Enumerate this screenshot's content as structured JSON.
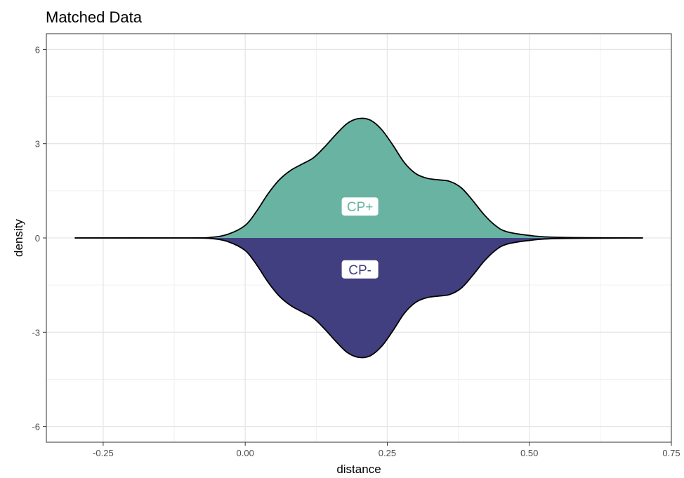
{
  "chart_data": {
    "type": "area",
    "title": "Matched Data",
    "xlabel": "distance",
    "ylabel": "density",
    "xlim": [
      -0.35,
      0.75
    ],
    "ylim": [
      -6.5,
      6.5
    ],
    "x_ticks": [
      -0.25,
      0.0,
      0.25,
      0.5,
      0.75
    ],
    "x_tick_labels": [
      "-0.25",
      "0.00",
      "0.25",
      "0.50",
      "0.75"
    ],
    "y_ticks": [
      -6,
      -3,
      0,
      3,
      6
    ],
    "y_tick_labels": [
      "-6",
      "-3",
      "0",
      "3",
      "6"
    ],
    "grid": true,
    "series": [
      {
        "name": "CP+",
        "color": "#69b3a2",
        "direction": "up",
        "x": [
          -0.3,
          -0.1,
          -0.06,
          -0.03,
          0.0,
          0.02,
          0.04,
          0.06,
          0.08,
          0.1,
          0.12,
          0.14,
          0.16,
          0.18,
          0.2,
          0.22,
          0.24,
          0.26,
          0.28,
          0.3,
          0.32,
          0.34,
          0.36,
          0.38,
          0.4,
          0.42,
          0.44,
          0.46,
          0.5,
          0.55,
          0.7
        ],
        "y": [
          0,
          0,
          0.02,
          0.12,
          0.4,
          0.85,
          1.4,
          1.85,
          2.15,
          2.35,
          2.55,
          2.9,
          3.3,
          3.65,
          3.8,
          3.75,
          3.45,
          2.95,
          2.4,
          2.05,
          1.9,
          1.85,
          1.8,
          1.6,
          1.2,
          0.75,
          0.4,
          0.2,
          0.08,
          0.02,
          0
        ]
      },
      {
        "name": "CP-",
        "color": "#413f80",
        "direction": "down",
        "x": [
          -0.3,
          -0.1,
          -0.06,
          -0.03,
          0.0,
          0.02,
          0.04,
          0.06,
          0.08,
          0.1,
          0.12,
          0.14,
          0.16,
          0.18,
          0.2,
          0.22,
          0.24,
          0.26,
          0.28,
          0.3,
          0.32,
          0.34,
          0.36,
          0.38,
          0.4,
          0.42,
          0.44,
          0.46,
          0.5,
          0.55,
          0.7
        ],
        "y": [
          0,
          0,
          0.02,
          0.12,
          0.4,
          0.85,
          1.4,
          1.85,
          2.15,
          2.35,
          2.55,
          2.9,
          3.3,
          3.65,
          3.8,
          3.75,
          3.45,
          2.95,
          2.4,
          2.05,
          1.9,
          1.85,
          1.8,
          1.6,
          1.2,
          0.75,
          0.4,
          0.2,
          0.08,
          0.02,
          0
        ]
      }
    ],
    "annotations": [
      {
        "text": "CP+",
        "x": 0.202,
        "y": 1.0,
        "color": "#69b3a2"
      },
      {
        "text": "CP-",
        "x": 0.202,
        "y": -1.0,
        "color": "#413f80"
      }
    ]
  }
}
